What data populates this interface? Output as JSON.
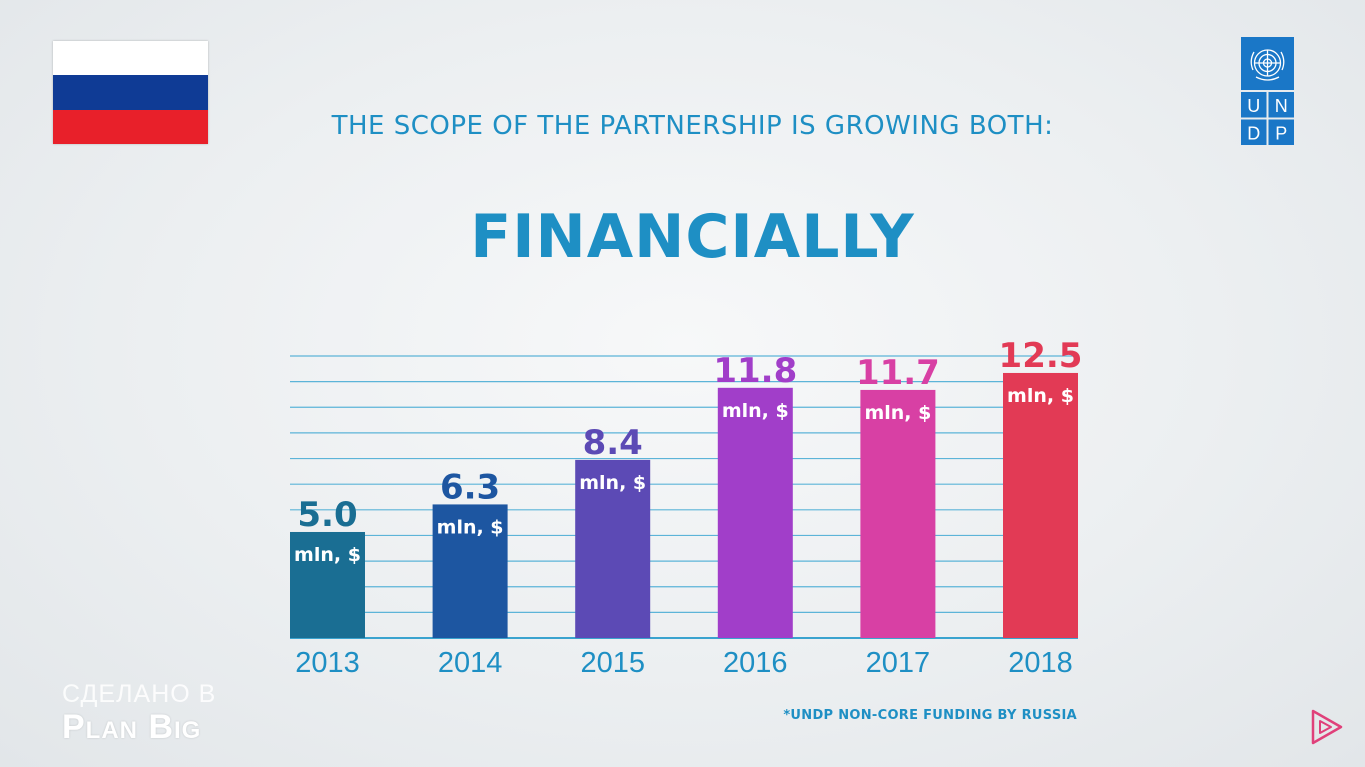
{
  "headline": "THE SCOPE OF THE PARTNERSHIP IS GROWING BOTH:",
  "subhead": "FINANCIALLY",
  "logo": {
    "letters": [
      "U",
      "N",
      "D",
      "P"
    ],
    "icon": "un-emblem-icon",
    "color": "#1a77c7"
  },
  "flag": {
    "colors": [
      "#ffffff",
      "#0f3b95",
      "#e8202a"
    ]
  },
  "footnote": "*UNDP NON-CORE FUNDING BY RUSSIA",
  "watermark": {
    "line1": "СДЕЛАНО В",
    "line2": "Plan Big"
  },
  "chart_data": {
    "type": "bar",
    "title": "",
    "xlabel": "",
    "ylabel": "",
    "ylim": [
      0,
      13.3
    ],
    "grid": true,
    "unit_label": "mln, $",
    "categories": [
      "2013",
      "2014",
      "2015",
      "2016",
      "2017",
      "2018"
    ],
    "values": [
      5.0,
      6.3,
      8.4,
      11.8,
      11.7,
      12.5
    ],
    "labels": [
      "5.0",
      "6.3",
      "8.4",
      "11.8",
      "11.7",
      "12.5"
    ],
    "colors": [
      "#1a6e93",
      "#1d56a1",
      "#5c4ab5",
      "#a13ec9",
      "#d840a4",
      "#e23a55"
    ],
    "label_colors": [
      "#1a6e93",
      "#1d56a1",
      "#5c4ab5",
      "#a13ec9",
      "#d840a4",
      "#e23a55"
    ]
  }
}
